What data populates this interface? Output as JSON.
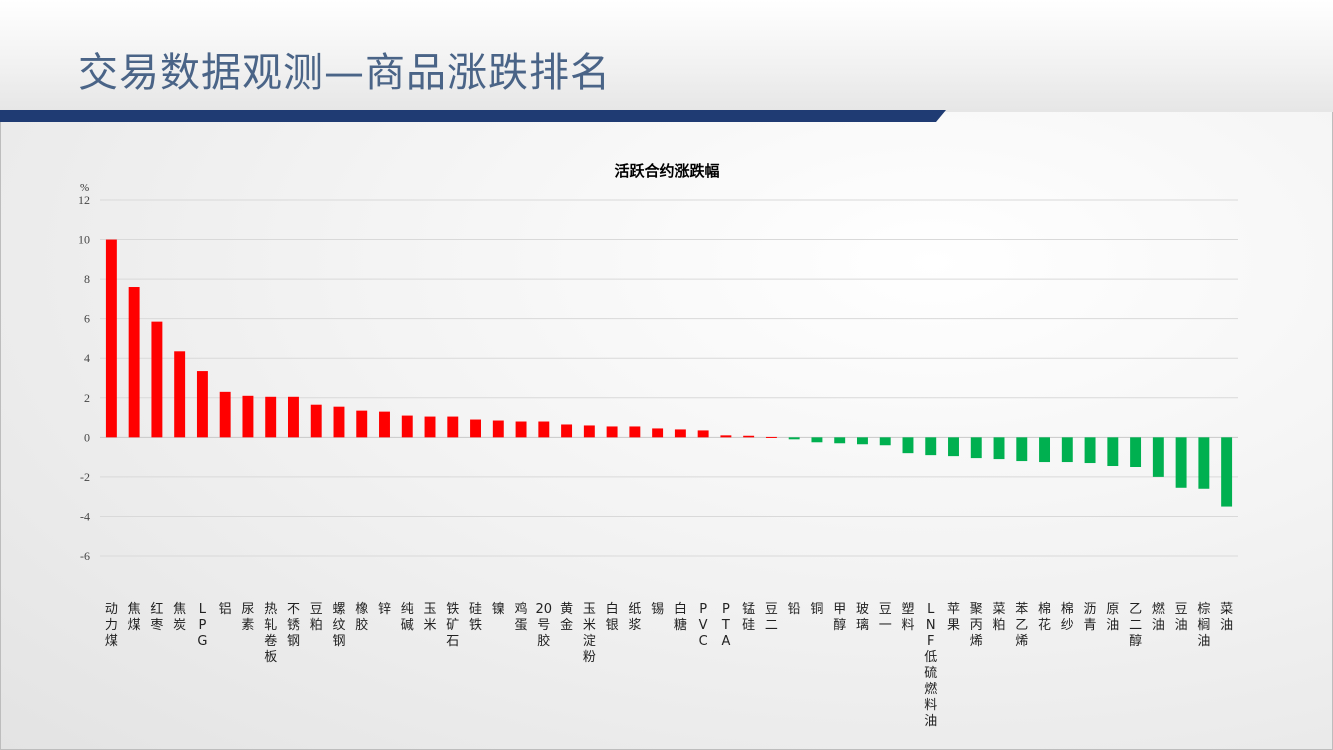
{
  "slide": {
    "title": "交易数据观测—商品涨跌排名",
    "accent_color": "#1f3b73",
    "title_color": "#4a6487"
  },
  "chart_data": {
    "type": "bar",
    "title": "活跃合约涨跌幅",
    "ylabel": "%",
    "xlabel": "",
    "ylim": [
      -6,
      12
    ],
    "yticks": [
      12,
      10,
      8,
      6,
      4,
      2,
      0,
      -2,
      -4,
      -6
    ],
    "grid": true,
    "positive_color": "#ff0000",
    "negative_color": "#00b050",
    "categories": [
      "动力煤",
      "焦煤",
      "红枣",
      "焦炭",
      "LPG",
      "铝",
      "尿素",
      "热轧卷板",
      "不锈钢",
      "豆粕",
      "螺纹钢",
      "橡胶",
      "锌",
      "纯碱",
      "玉米",
      "铁矿石",
      "硅铁",
      "镍",
      "鸡蛋",
      "20号胶",
      "黄金",
      "玉米淀粉",
      "白银",
      "纸浆",
      "锡",
      "白糖",
      "PVC",
      "PTA",
      "锰硅",
      "豆二",
      "铅",
      "铜",
      "甲醇",
      "玻璃",
      "豆一",
      "塑料",
      "LNF低硫燃料油",
      "苹果",
      "聚丙烯",
      "菜粕",
      "苯乙烯",
      "棉花",
      "棉纱",
      "沥青",
      "原油",
      "乙二醇",
      "燃油",
      "豆油",
      "棕榈油",
      "菜油"
    ],
    "values": [
      10.0,
      7.6,
      5.85,
      4.35,
      3.35,
      2.3,
      2.1,
      2.05,
      2.05,
      1.65,
      1.55,
      1.35,
      1.3,
      1.1,
      1.05,
      1.05,
      0.9,
      0.85,
      0.8,
      0.8,
      0.65,
      0.6,
      0.55,
      0.55,
      0.45,
      0.4,
      0.35,
      0.1,
      0.08,
      0.02,
      -0.1,
      -0.25,
      -0.3,
      -0.35,
      -0.4,
      -0.8,
      -0.9,
      -0.95,
      -1.05,
      -1.1,
      -1.2,
      -1.25,
      -1.25,
      -1.3,
      -1.45,
      -1.5,
      -2.0,
      -2.55,
      -2.6,
      -3.5
    ]
  }
}
